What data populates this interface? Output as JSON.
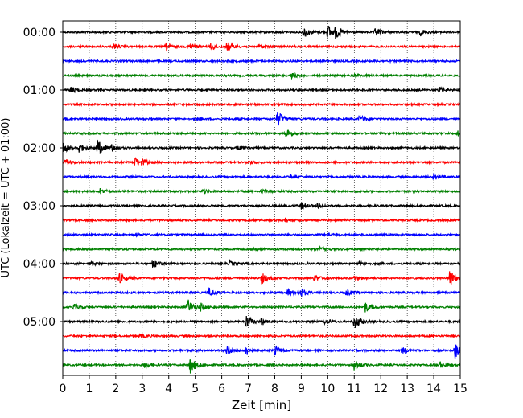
{
  "chart_data": {
    "type": "line",
    "title": "",
    "xlabel": "Zeit  [min]",
    "ylabel": "UTC (Lokalzeit = UTC + 01:00)",
    "xlim": [
      0,
      15
    ],
    "x_ticks": [
      "0",
      "1",
      "2",
      "3",
      "4",
      "5",
      "6",
      "7",
      "8",
      "9",
      "10",
      "11",
      "12",
      "13",
      "14",
      "15"
    ],
    "y_tick_labels": [
      "00:00",
      "01:00",
      "02:00",
      "03:00",
      "04:00",
      "05:00"
    ],
    "y_tick_rows": [
      0,
      4,
      8,
      12,
      16,
      20
    ],
    "grid": "vertical dotted lines at each minute",
    "trace_colors": [
      "#000000",
      "#ff0000",
      "#0000ff",
      "#008000"
    ],
    "traces": [
      {
        "start": "00:00",
        "color": "#000000",
        "events": [
          {
            "t": 9.1,
            "a": 1.0
          },
          {
            "t": 10.0,
            "a": 1.3
          },
          {
            "t": 10.3,
            "a": 1.0
          },
          {
            "t": 11.8,
            "a": 0.8
          },
          {
            "t": 13.5,
            "a": 0.5
          }
        ]
      },
      {
        "start": "00:15",
        "color": "#ff0000",
        "events": [
          {
            "t": 1.9,
            "a": 0.4
          },
          {
            "t": 3.9,
            "a": 0.6
          },
          {
            "t": 4.8,
            "a": 0.7
          },
          {
            "t": 5.6,
            "a": 0.8
          },
          {
            "t": 6.2,
            "a": 0.9
          },
          {
            "t": 7.4,
            "a": 0.4
          }
        ]
      },
      {
        "start": "00:30",
        "color": "#0000ff",
        "events": []
      },
      {
        "start": "00:45",
        "color": "#008000",
        "events": [
          {
            "t": 8.6,
            "a": 0.5
          },
          {
            "t": 11.0,
            "a": 0.3
          }
        ]
      },
      {
        "start": "01:00",
        "color": "#000000",
        "events": [
          {
            "t": 0.3,
            "a": 0.6
          },
          {
            "t": 14.2,
            "a": 0.5
          }
        ]
      },
      {
        "start": "01:15",
        "color": "#ff0000",
        "events": []
      },
      {
        "start": "01:30",
        "color": "#0000ff",
        "events": [
          {
            "t": 8.1,
            "a": 1.5
          },
          {
            "t": 11.2,
            "a": 0.7
          }
        ]
      },
      {
        "start": "01:45",
        "color": "#008000",
        "events": [
          {
            "t": 8.4,
            "a": 0.8
          },
          {
            "t": 14.9,
            "a": 0.6
          }
        ]
      },
      {
        "start": "02:00",
        "color": "#000000",
        "events": [
          {
            "t": 0.0,
            "a": 1.0
          },
          {
            "t": 0.6,
            "a": 0.8
          },
          {
            "t": 1.3,
            "a": 1.5
          },
          {
            "t": 1.8,
            "a": 0.7
          },
          {
            "t": 6.6,
            "a": 0.4
          }
        ]
      },
      {
        "start": "02:15",
        "color": "#ff0000",
        "events": [
          {
            "t": 0.1,
            "a": 0.6
          },
          {
            "t": 2.7,
            "a": 1.0
          },
          {
            "t": 3.0,
            "a": 0.4
          },
          {
            "t": 7.0,
            "a": 0.3
          }
        ]
      },
      {
        "start": "02:30",
        "color": "#0000ff",
        "events": [
          {
            "t": 8.6,
            "a": 0.4
          },
          {
            "t": 14.0,
            "a": 0.6
          }
        ]
      },
      {
        "start": "02:45",
        "color": "#008000",
        "events": [
          {
            "t": 1.4,
            "a": 0.5
          },
          {
            "t": 5.3,
            "a": 0.4
          },
          {
            "t": 7.5,
            "a": 0.3
          }
        ]
      },
      {
        "start": "03:00",
        "color": "#000000",
        "events": [
          {
            "t": 9.0,
            "a": 0.6
          },
          {
            "t": 9.6,
            "a": 0.4
          }
        ]
      },
      {
        "start": "03:15",
        "color": "#ff0000",
        "events": [
          {
            "t": 8.4,
            "a": 0.4
          }
        ]
      },
      {
        "start": "03:30",
        "color": "#0000ff",
        "events": [
          {
            "t": 2.8,
            "a": 0.3
          },
          {
            "t": 10.0,
            "a": 0.3
          }
        ]
      },
      {
        "start": "03:45",
        "color": "#008000",
        "events": [
          {
            "t": 7.1,
            "a": 0.3
          },
          {
            "t": 9.7,
            "a": 0.3
          }
        ]
      },
      {
        "start": "04:00",
        "color": "#000000",
        "events": [
          {
            "t": 1.0,
            "a": 0.3
          },
          {
            "t": 3.4,
            "a": 0.9
          },
          {
            "t": 6.3,
            "a": 0.4
          },
          {
            "t": 11.2,
            "a": 0.3
          }
        ]
      },
      {
        "start": "04:15",
        "color": "#ff0000",
        "events": [
          {
            "t": 2.1,
            "a": 1.1
          },
          {
            "t": 7.5,
            "a": 1.0
          },
          {
            "t": 9.5,
            "a": 0.6
          },
          {
            "t": 11.0,
            "a": 0.5
          },
          {
            "t": 14.6,
            "a": 1.7
          }
        ]
      },
      {
        "start": "04:30",
        "color": "#0000ff",
        "events": [
          {
            "t": 5.5,
            "a": 1.0
          },
          {
            "t": 8.5,
            "a": 0.8
          },
          {
            "t": 9.0,
            "a": 0.7
          },
          {
            "t": 10.7,
            "a": 0.6
          }
        ]
      },
      {
        "start": "04:45",
        "color": "#008000",
        "events": [
          {
            "t": 0.4,
            "a": 0.6
          },
          {
            "t": 4.7,
            "a": 1.6
          },
          {
            "t": 5.2,
            "a": 0.6
          },
          {
            "t": 11.4,
            "a": 1.0
          }
        ]
      },
      {
        "start": "05:00",
        "color": "#000000",
        "events": [
          {
            "t": 6.9,
            "a": 1.3
          },
          {
            "t": 7.5,
            "a": 0.6
          },
          {
            "t": 9.9,
            "a": 0.5
          },
          {
            "t": 11.0,
            "a": 1.3
          }
        ]
      },
      {
        "start": "05:15",
        "color": "#ff0000",
        "events": [
          {
            "t": 2.9,
            "a": 0.3
          }
        ]
      },
      {
        "start": "05:30",
        "color": "#0000ff",
        "events": [
          {
            "t": 6.2,
            "a": 0.9
          },
          {
            "t": 6.9,
            "a": 1.0
          },
          {
            "t": 8.0,
            "a": 0.8
          },
          {
            "t": 12.8,
            "a": 0.6
          },
          {
            "t": 14.8,
            "a": 1.4
          }
        ]
      },
      {
        "start": "05:45",
        "color": "#008000",
        "events": [
          {
            "t": 3.1,
            "a": 0.6
          },
          {
            "t": 4.8,
            "a": 1.5
          },
          {
            "t": 11.0,
            "a": 0.9
          },
          {
            "t": 14.2,
            "a": 0.6
          }
        ]
      }
    ]
  }
}
